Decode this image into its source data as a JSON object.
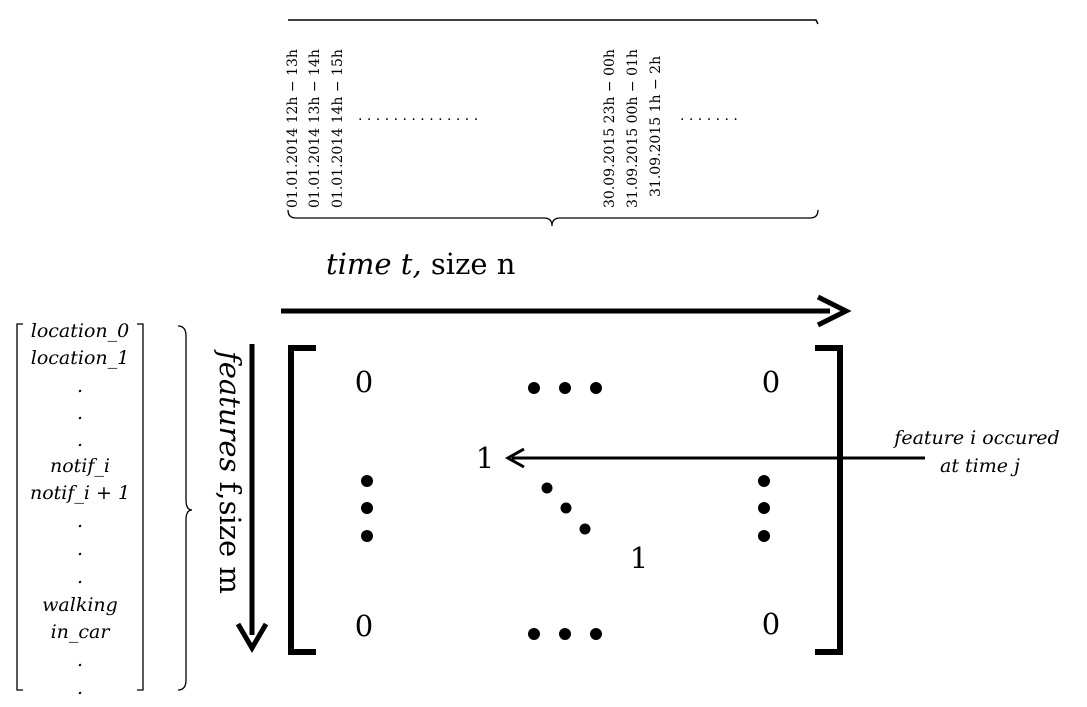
{
  "time_header": {
    "labels_start": [
      "01.01.2014 12h − 13h",
      "01.01.2014 13h − 14h",
      "01.01.2014 14h − 15h"
    ],
    "labels_end": [
      "30.09.2015 23h − 00h",
      "31.09.2015 00h − 01h",
      "31.09.2015 1h − 2h"
    ],
    "ellipsis_dots": ". . . . . . . . . . . . . .",
    "ellipsis_dots_right": ". . . . . . ."
  },
  "time_axis": {
    "label_italic": "time t,",
    "label_plain": " size n"
  },
  "feature_axis": {
    "label_italic": "features",
    "label_plain": " f,size m"
  },
  "feature_list": [
    "location_0",
    "location_1",
    ".",
    ".",
    ".",
    "notif_i",
    "notif_i + 1",
    ".",
    ".",
    ".",
    "walking",
    "in_car",
    ".",
    "."
  ],
  "matrix": {
    "top_left": "0",
    "top_right": "0",
    "bottom_left": "0",
    "bottom_right": "0",
    "center_one": "1",
    "diag_one": "1"
  },
  "annotation": {
    "line1": "feature i occured",
    "line2": "at time j"
  }
}
